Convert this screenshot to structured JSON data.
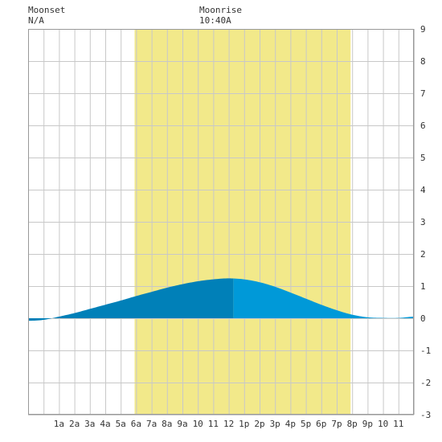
{
  "header": {
    "moonset_label": "Moonset",
    "moonset_value": "N/A",
    "moonrise_label": "Moonrise",
    "moonrise_value": "10:40A"
  },
  "colors": {
    "daylight": "#f2e98a",
    "grid": "#c8c8c8",
    "tide_dark": "#0080b8",
    "tide_light": "#0099d8",
    "frame": "#999999"
  },
  "chart_data": {
    "type": "area",
    "title": "",
    "xlabel": "",
    "ylabel": "",
    "x_range_hours": [
      -1,
      24
    ],
    "ylim": [
      -3,
      9
    ],
    "y_ticks": [
      -3,
      -2,
      -1,
      0,
      1,
      2,
      3,
      4,
      5,
      6,
      7,
      8,
      9
    ],
    "x_ticks": [
      {
        "hour": 1,
        "label": "1a"
      },
      {
        "hour": 2,
        "label": "2a"
      },
      {
        "hour": 3,
        "label": "3a"
      },
      {
        "hour": 4,
        "label": "4a"
      },
      {
        "hour": 5,
        "label": "5a"
      },
      {
        "hour": 6,
        "label": "6a"
      },
      {
        "hour": 7,
        "label": "7a"
      },
      {
        "hour": 8,
        "label": "8a"
      },
      {
        "hour": 9,
        "label": "9a"
      },
      {
        "hour": 10,
        "label": "10"
      },
      {
        "hour": 11,
        "label": "11"
      },
      {
        "hour": 12,
        "label": "12"
      },
      {
        "hour": 13,
        "label": "1p"
      },
      {
        "hour": 14,
        "label": "2p"
      },
      {
        "hour": 15,
        "label": "3p"
      },
      {
        "hour": 16,
        "label": "4p"
      },
      {
        "hour": 17,
        "label": "5p"
      },
      {
        "hour": 18,
        "label": "6p"
      },
      {
        "hour": 19,
        "label": "7p"
      },
      {
        "hour": 20,
        "label": "8p"
      },
      {
        "hour": 21,
        "label": "9p"
      },
      {
        "hour": 22,
        "label": "10"
      },
      {
        "hour": 23,
        "label": "11"
      }
    ],
    "daylight_hours": [
      5.9,
      19.9
    ],
    "moonrise_hour": 10.67,
    "tide_split_hour": 12.3,
    "tide": {
      "x": [
        -1,
        0,
        1,
        2,
        3,
        4,
        5,
        6,
        7,
        8,
        9,
        10,
        11,
        12,
        13,
        14,
        15,
        16,
        17,
        18,
        19,
        20,
        21,
        22,
        23,
        24
      ],
      "y": [
        -0.08,
        -0.05,
        0.05,
        0.16,
        0.29,
        0.42,
        0.55,
        0.69,
        0.82,
        0.95,
        1.06,
        1.15,
        1.21,
        1.24,
        1.21,
        1.12,
        0.98,
        0.8,
        0.61,
        0.42,
        0.25,
        0.11,
        0.03,
        0.01,
        0.01,
        0.05
      ]
    }
  }
}
